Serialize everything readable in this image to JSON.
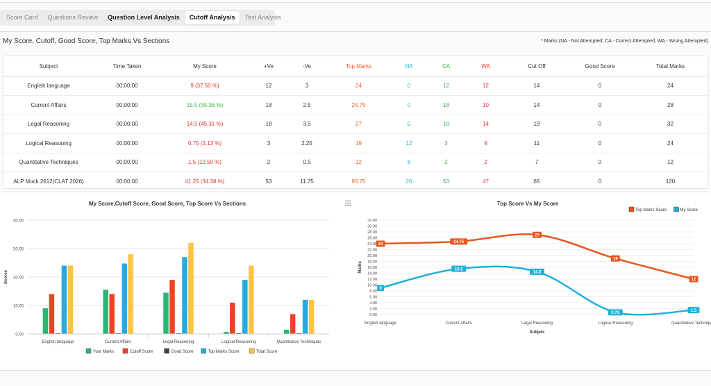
{
  "tabs": [
    {
      "label": "Score Card",
      "active": false
    },
    {
      "label": "Questions Review",
      "active": false
    },
    {
      "label": "Question Level Analysis",
      "active": false
    },
    {
      "label": "Cutoff Analysis",
      "active": true
    },
    {
      "label": "Test Analysis",
      "active": false
    }
  ],
  "section_title": "My Score, Cutoff, Good Score, Top Marks Vs Sections",
  "marks_note": "* Marks (NA - Not Attempted; CA - Correct Attempted; WA - Wrong Attempted)",
  "table": {
    "headers": [
      "Subject",
      "Time Taken",
      "My Score",
      "+Ve",
      "-Ve",
      "Top Marks",
      "NA",
      "CA",
      "WA",
      "Cut Off",
      "Good Score",
      "Total Marks"
    ],
    "rows": [
      [
        "English language",
        "00:00:00",
        "9 (37.50 %)",
        "12",
        "3",
        "24",
        "0",
        "12",
        "12",
        "14",
        "0",
        "24"
      ],
      [
        "Current Affairs",
        "00:00:00",
        "15.5 (55.36 %)",
        "18",
        "2.5",
        "24.75",
        "0",
        "18",
        "10",
        "14",
        "0",
        "28"
      ],
      [
        "Legal Reasoning",
        "00:00:00",
        "14.5 (45.31 %)",
        "18",
        "3.5",
        "27",
        "0",
        "18",
        "14",
        "19",
        "0",
        "32"
      ],
      [
        "Logical Reasoning",
        "00:00:00",
        "0.75 (3.13 %)",
        "3",
        "2.25",
        "19",
        "12",
        "3",
        "9",
        "11",
        "0",
        "24"
      ],
      [
        "Quantitative Techniques",
        "00:00:00",
        "1.5 (12.50 %)",
        "2",
        "0.5",
        "12",
        "8",
        "2",
        "2",
        "7",
        "0",
        "12"
      ],
      [
        "ALP Mock 2612(CLAT 2026)",
        "00:00:00",
        "41.25 (34.38 %)",
        "53",
        "11.75",
        "93.75",
        "20",
        "53",
        "47",
        "65",
        "0",
        "120"
      ]
    ],
    "score_colors": [
      "#e8312f",
      "#3bb34a",
      "#e8312f",
      "#e8312f",
      "#e8312f",
      "#e8312f"
    ]
  },
  "chart_data": [
    {
      "type": "bar",
      "title": "My Score,Cutoff Score, Good Score, Top Score Vs Sections",
      "xlabel": "",
      "ylabel": "Scores",
      "ylim": [
        0,
        40
      ],
      "yticks": [
        "0.00",
        "10.00",
        "20.00",
        "30.00",
        "40.00"
      ],
      "categories": [
        "English language",
        "Current Affairs",
        "Legal Reasoning",
        "Logical Reasoning",
        "Quantitative Techniques"
      ],
      "series": [
        {
          "name": "Your Marks",
          "color": "#2bb673",
          "values": [
            9,
            15.5,
            14.5,
            0.75,
            1.5
          ]
        },
        {
          "name": "Cutoff Score",
          "color": "#ef4123",
          "values": [
            14,
            14,
            19,
            11,
            7
          ]
        },
        {
          "name": "Good Score",
          "color": "#3b3f4e",
          "values": [
            0,
            0,
            0,
            0,
            0
          ]
        },
        {
          "name": "Top Marks Score",
          "color": "#27aae1",
          "values": [
            24,
            24.75,
            27,
            19,
            12
          ]
        },
        {
          "name": "Total Score",
          "color": "#fbc444",
          "values": [
            24,
            28,
            32,
            24,
            12
          ]
        }
      ],
      "legend": "bottom"
    },
    {
      "type": "line",
      "title": "Top Score Vs My Score",
      "xlabel": "Subjets",
      "ylabel": "Marks",
      "ylim": [
        0,
        32
      ],
      "yticks": [
        "0.00",
        "2.00",
        "4.00",
        "6.00",
        "8.00",
        "10.00",
        "12.00",
        "14.00",
        "16.00",
        "18.00",
        "20.00",
        "22.00",
        "24.00",
        "26.00",
        "28.00",
        "30.00",
        "32.00"
      ],
      "categories": [
        "English language",
        "Current Affairs",
        "Legal Reasoning",
        "Logical Reasoning",
        "Quantitative Techniques"
      ],
      "series": [
        {
          "name": "Top Marks Score",
          "color": "#e8561e",
          "values": [
            24,
            24.75,
            27,
            19,
            12
          ],
          "labels": [
            "24",
            "24.75",
            "27",
            "19",
            "12"
          ]
        },
        {
          "name": "My Score",
          "color": "#1fb0d8",
          "values": [
            9,
            15.5,
            14.5,
            0.75,
            1.5
          ],
          "labels": [
            "9",
            "15.5",
            "14.5",
            "0.75",
            "1.5"
          ]
        }
      ],
      "legend": "top-right"
    }
  ]
}
